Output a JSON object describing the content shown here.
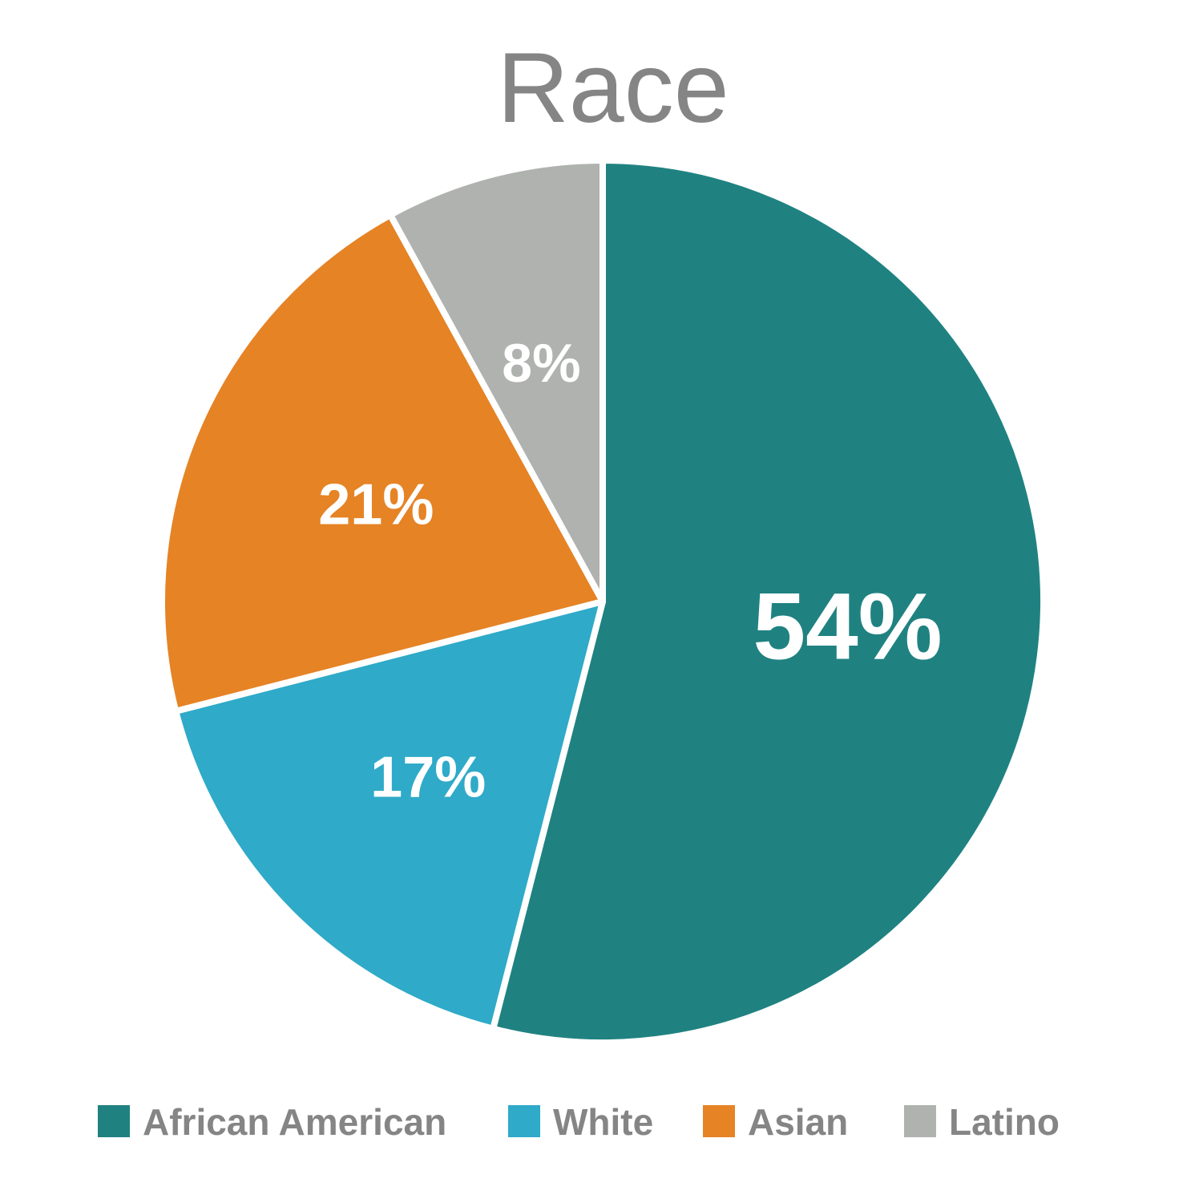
{
  "chart_data": {
    "type": "pie",
    "title": "Race",
    "start": "top, clockwise",
    "legend_position": "bottom",
    "slices": [
      {
        "name": "African American",
        "value": 54,
        "label": "54%",
        "color": "#1F8281"
      },
      {
        "name": "White",
        "value": 17,
        "label": "17%",
        "color": "#2FAAC8"
      },
      {
        "name": "Asian",
        "value": 21,
        "label": "21%",
        "color": "#E58325"
      },
      {
        "name": "Latino",
        "value": 8,
        "label": "8%",
        "color": "#AFB2AE"
      }
    ]
  }
}
